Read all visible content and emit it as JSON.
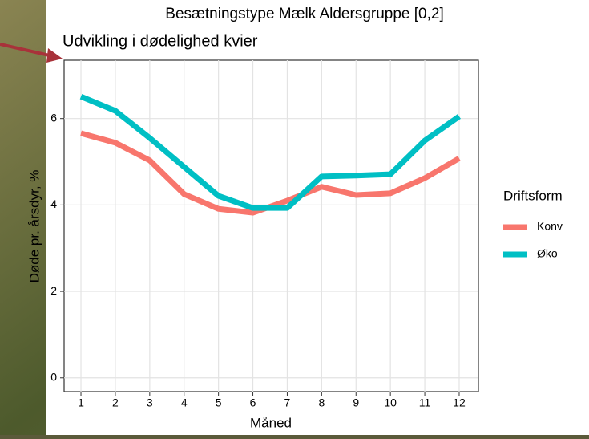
{
  "chart_data": {
    "type": "line",
    "header": "Besætningstype Mælk Aldersgruppe [0,2]",
    "title": "Udvikling i dødelighed kvier",
    "x_label": "Måned",
    "y_label": "Døde pr. årsdyr, %",
    "legend_title": "Driftsform",
    "x": [
      1,
      2,
      3,
      4,
      5,
      6,
      7,
      8,
      9,
      10,
      11,
      12
    ],
    "xlim": [
      0.51,
      12.56
    ],
    "xticks": [
      1,
      2,
      3,
      4,
      5,
      6,
      7,
      8,
      9,
      10,
      11,
      12
    ],
    "ylim": [
      -0.32,
      7.35
    ],
    "yticks": [
      0,
      2,
      4,
      6
    ],
    "grid": true,
    "legend": "right",
    "series": [
      {
        "name": "Konv",
        "color": "#f8766d",
        "values": [
          5.66,
          5.44,
          5.03,
          4.25,
          3.91,
          3.82,
          4.1,
          4.42,
          4.23,
          4.27,
          4.62,
          5.08
        ]
      },
      {
        "name": "Øko",
        "color": "#00bfc4",
        "values": [
          6.51,
          6.18,
          5.55,
          4.88,
          4.21,
          3.93,
          3.93,
          4.66,
          4.68,
          4.71,
          5.49,
          6.05
        ]
      }
    ]
  }
}
